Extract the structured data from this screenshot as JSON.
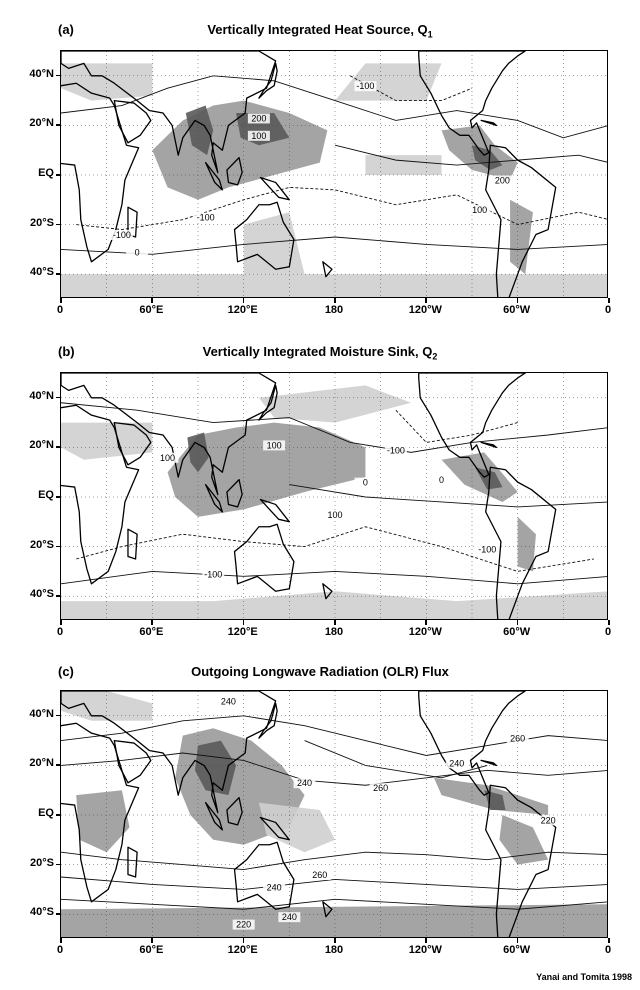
{
  "panels": [
    {
      "letter": "(a)",
      "title_main": "Vertically Integrated Heat Source, Q",
      "title_sub": "1",
      "contour_labels": [
        "-100",
        "-100",
        "-100",
        "200",
        "200",
        "100",
        "100",
        "0"
      ]
    },
    {
      "letter": "(b)",
      "title_main": "Vertically Integrated Moisture Sink, Q",
      "title_sub": "2",
      "contour_labels": [
        "-100",
        "-100",
        "-100",
        "100",
        "100",
        "100",
        "0",
        "0"
      ]
    },
    {
      "letter": "(c)",
      "title_main": "Outgoing Longwave Radiation (OLR) Flux",
      "title_sub": "",
      "contour_labels": [
        "240",
        "240",
        "240",
        "240",
        "260",
        "260",
        "220",
        "260",
        "240",
        "220"
      ]
    }
  ],
  "lat_ticks": [
    "40°N",
    "20°N",
    "EQ",
    "20°S",
    "40°S"
  ],
  "lon_ticks": [
    "0",
    "60°E",
    "120°E",
    "180",
    "120°W",
    "60°W",
    "0"
  ],
  "credit": "Yanai and Tomita 1998",
  "colors": {
    "shade_dark": "#5a5a5a",
    "shade_mid": "#9a9a9a",
    "shade_light": "#cfcfcf",
    "land": "#000000"
  }
}
